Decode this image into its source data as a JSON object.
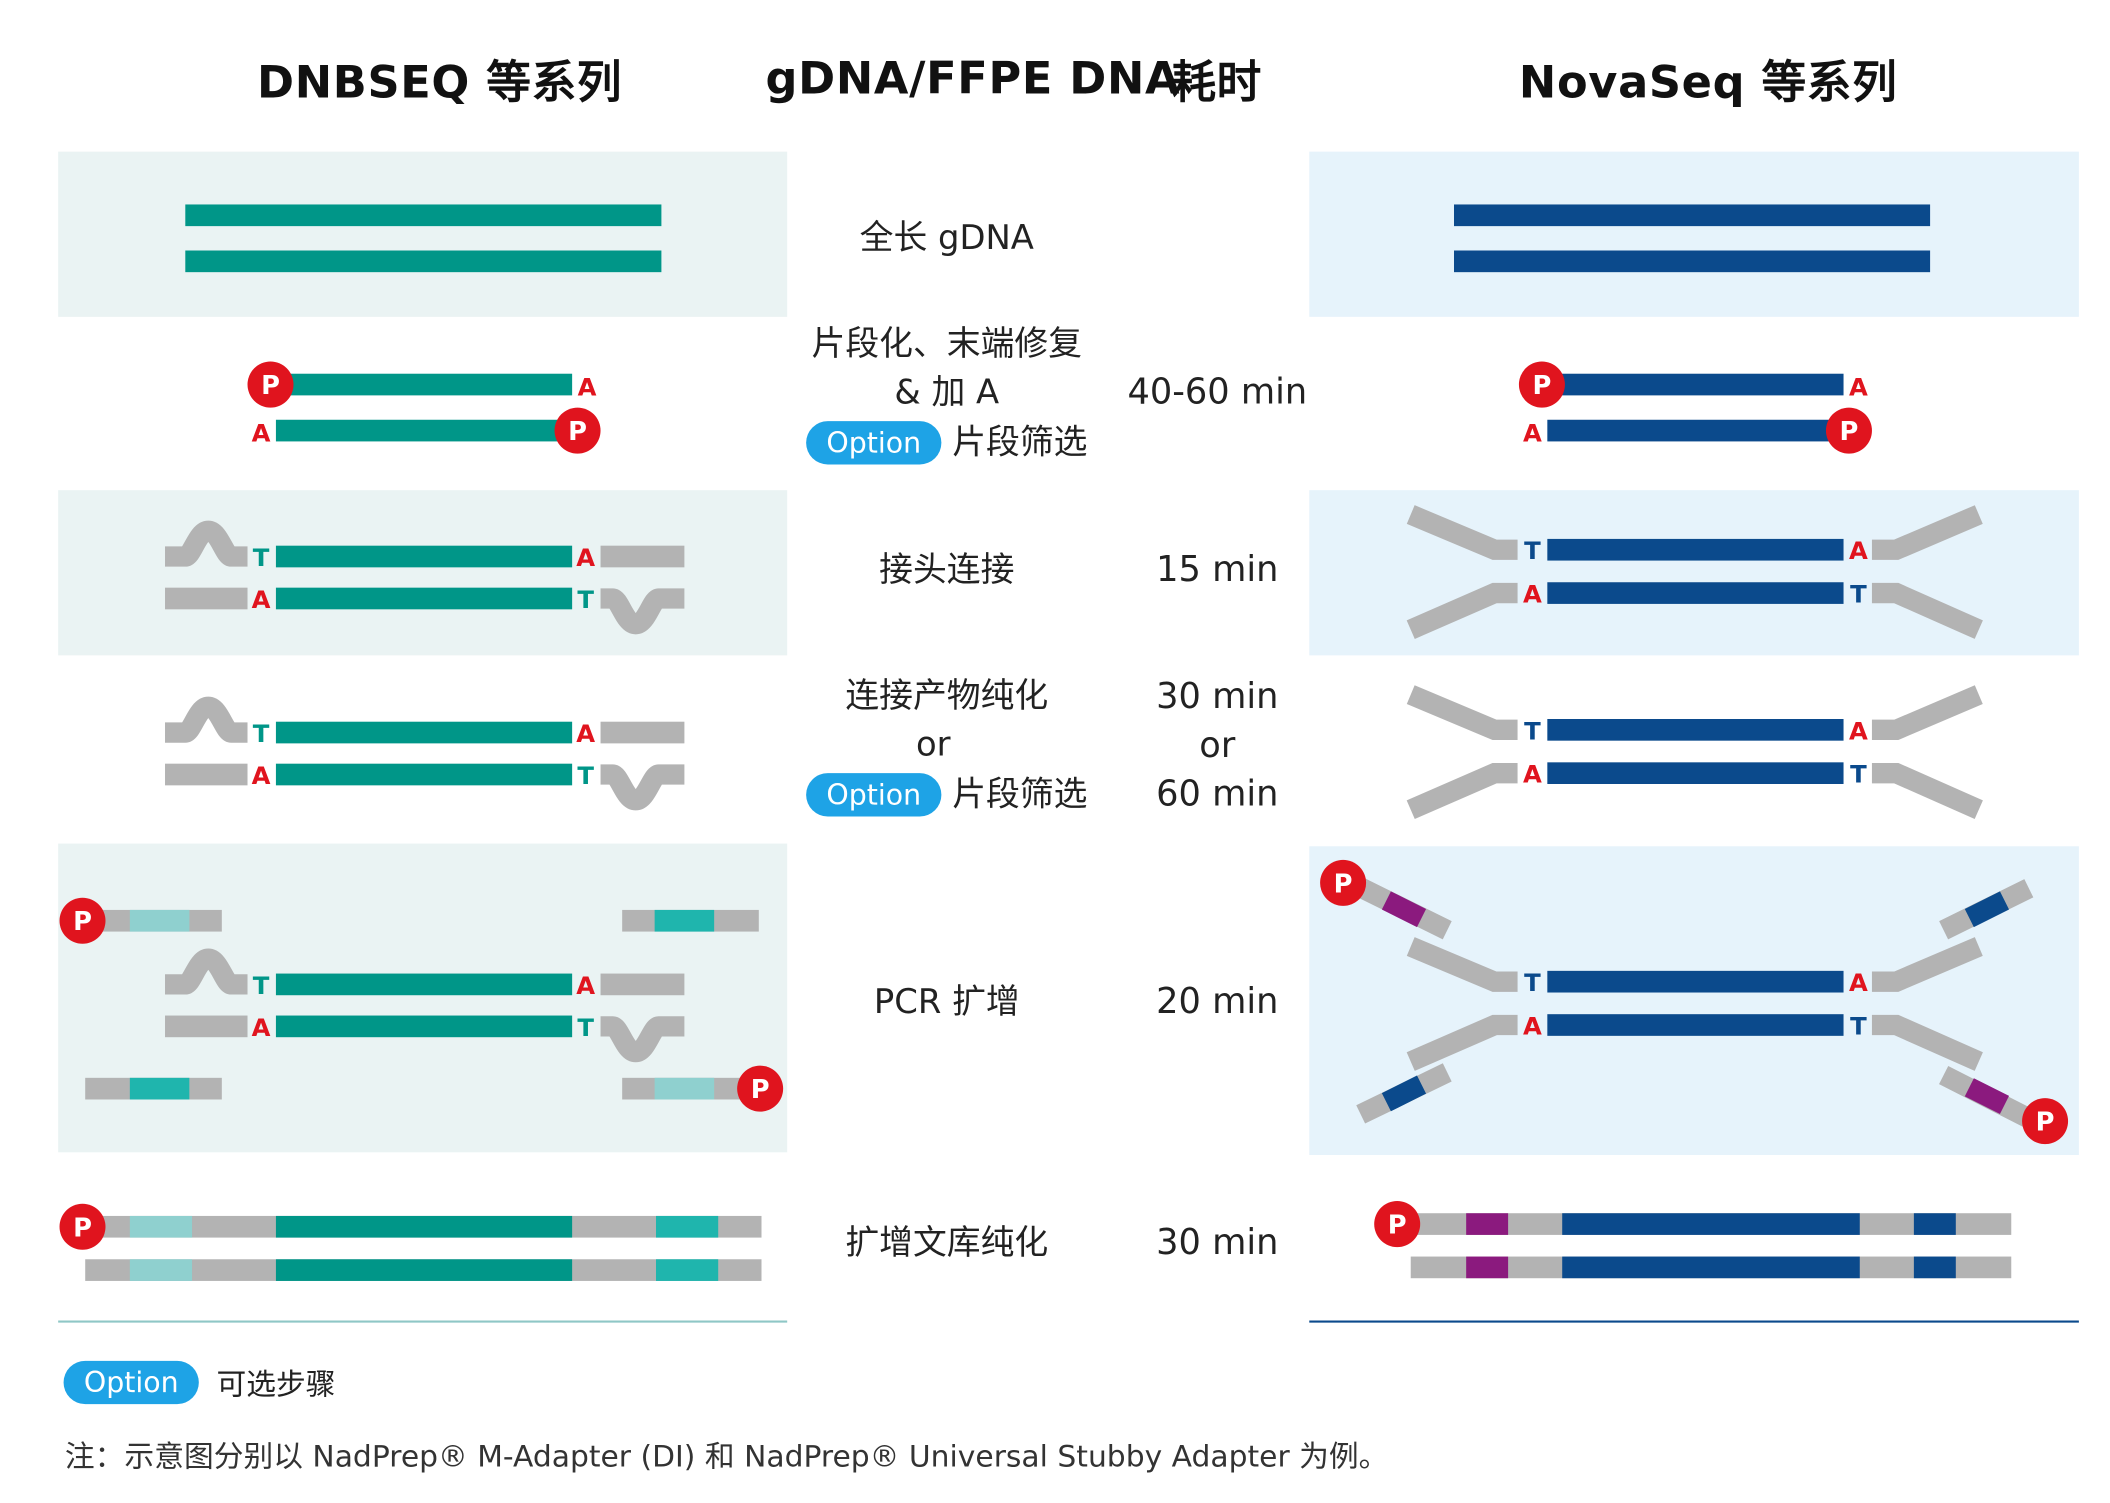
{
  "headers": {
    "left": "DNBSEQ 等系列",
    "middle": "gDNA/FFPE DNA",
    "time": "耗时",
    "right": "NovaSeq 等系列"
  },
  "option_label": "Option",
  "steps": [
    {
      "lines": [
        "全长 gDNA"
      ],
      "time": []
    },
    {
      "lines": [
        "片段化、末端修复",
        "& 加 A"
      ],
      "option_text": "片段筛选",
      "time": [
        "40-60 min"
      ]
    },
    {
      "lines": [
        "接头连接"
      ],
      "time": [
        "15 min"
      ]
    },
    {
      "lines": [
        "连接产物纯化",
        "or"
      ],
      "option_text": "片段筛选",
      "time": [
        "30 min",
        "or",
        "60 min"
      ]
    },
    {
      "lines": [
        "PCR 扩增"
      ],
      "time": [
        "20 min"
      ]
    },
    {
      "lines": [
        "扩增文库纯化"
      ],
      "time": [
        "30 min"
      ]
    }
  ],
  "marks": {
    "p": "P",
    "a": "A",
    "t": "T"
  },
  "legend": {
    "text": "可选步骤"
  },
  "note": "注：示意图分别以 NadPrep® M-Adapter (DI) 和 NadPrep® Universal Stubby Adapter 为例。",
  "colors": {
    "teal": "#009688",
    "navy": "#0b4a8c",
    "grey": "#b3b3b3",
    "light_teal": "#8fd0cf",
    "mid_teal": "#1fb5ad",
    "purple": "#8b1a7e",
    "red": "#e0141e",
    "option_blue": "#1ea3e6",
    "band_left": "#eaf3f3",
    "band_right": "#e6f3fb"
  }
}
